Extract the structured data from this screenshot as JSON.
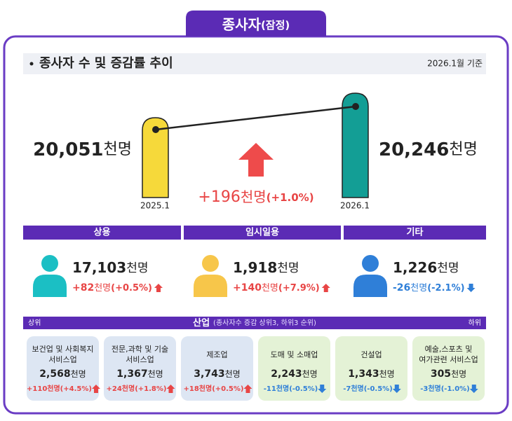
{
  "header": {
    "title": "종사자",
    "qualifier": "(잠정)"
  },
  "section": {
    "title": "종사자 수 및 증감률 추이",
    "note": "2026.1월 기준"
  },
  "trend": {
    "left": {
      "value": "20,051",
      "unit": "천명",
      "label": "2025.1"
    },
    "right": {
      "value": "20,246",
      "unit": "천명",
      "label": "2026.1"
    },
    "change": {
      "value": "+196",
      "unit": "천명",
      "pct": "(+1.0%)"
    }
  },
  "categories": [
    {
      "name": "상용",
      "value": "17,103",
      "unit": "천명",
      "change": "+82",
      "change_unit": "천명",
      "pct": "(+0.5%)"
    },
    {
      "name": "임시일용",
      "value": "1,918",
      "unit": "천명",
      "change": "+140",
      "change_unit": "천명",
      "pct": "(+7.9%)"
    },
    {
      "name": "기타",
      "value": "1,226",
      "unit": "천명",
      "change": "-26",
      "change_unit": "천명",
      "pct": "(-2.1%)"
    }
  ],
  "industry": {
    "left": "상위",
    "title": "산업",
    "subtitle": "(종사자수 증감 상위3, 하위3 순위)",
    "right": "하위",
    "items": [
      {
        "name": [
          "보건업 및 사회복지",
          "서비스업"
        ],
        "value": "2,568",
        "unit": "천명",
        "change": "+110천명(+4.5%)"
      },
      {
        "name": [
          "전문,과학 및 기술",
          "서비스업"
        ],
        "value": "1,367",
        "unit": "천명",
        "change": "+24천명(+1.8%)"
      },
      {
        "name": [
          "제조업"
        ],
        "value": "3,743",
        "unit": "천명",
        "change": "+18천명(+0.5%)"
      },
      {
        "name": [
          "도매 및 소매업"
        ],
        "value": "2,243",
        "unit": "천명",
        "change": "-11천명(-0.5%)"
      },
      {
        "name": [
          "건설업"
        ],
        "value": "1,343",
        "unit": "천명",
        "change": "-7천명(-0.5%)"
      },
      {
        "name": [
          "예술,스포츠 및",
          "여가관련 서비스업"
        ],
        "value": "305",
        "unit": "천명",
        "change": "-3천명(-1.0%)"
      }
    ]
  }
}
